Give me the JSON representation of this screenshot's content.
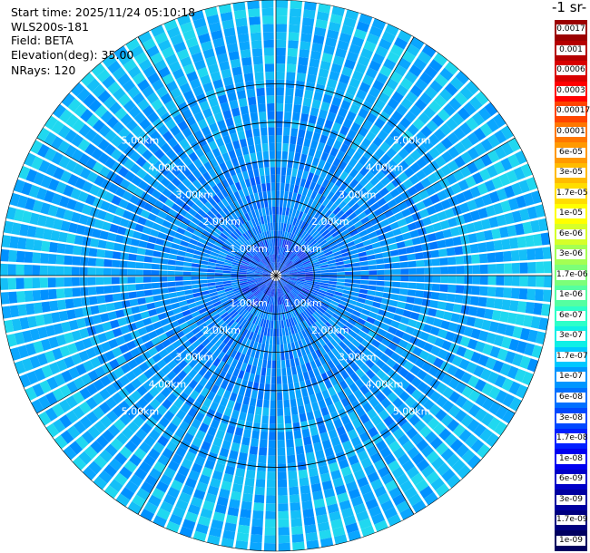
{
  "info": {
    "start_time": "Start time: 2025/11/24 05:10:18",
    "instrument": "WLS200s-181",
    "field": "Field: BETA",
    "elevation": "Elevation(deg): 35.00",
    "nrays": "NRays: 120"
  },
  "colorbar": {
    "title": "-1 sr-",
    "labels": [
      "0.0017",
      "0.001",
      "0.0006",
      "0.0003",
      "0.00017",
      "0.0001",
      "6e-05",
      "3e-05",
      "1.7e-05",
      "1e-05",
      "6e-06",
      "3e-06",
      "1.7e-06",
      "1e-06",
      "6e-07",
      "3e-07",
      "1.7e-07",
      "1e-07",
      "6e-08",
      "3e-08",
      "1.7e-08",
      "1e-08",
      "6e-09",
      "3e-09",
      "1.7e-09",
      "1e-09"
    ],
    "colors": [
      "#9b0000",
      "#b50000",
      "#d80000",
      "#ff0000",
      "#ff4400",
      "#ff7700",
      "#ff9900",
      "#ffbb00",
      "#ffdd00",
      "#ffff00",
      "#d6ff29",
      "#a4ff53",
      "#7cff79",
      "#55ffa1",
      "#2dffc9",
      "#0fefe6",
      "#00c8ff",
      "#0096ff",
      "#0070ff",
      "#0048ff",
      "#0020ff",
      "#0000f0",
      "#0000c8",
      "#0000a0",
      "#000080",
      "#000060"
    ],
    "dark_text_above_index": 17
  },
  "chart_data": {
    "type": "heatmap",
    "projection": "polar (PPI scan)",
    "field": "BETA",
    "elevation_deg": 35.0,
    "n_rays": 120,
    "range_rings": [
      {
        "label": "1.00km",
        "value_km": 1.0
      },
      {
        "label": "2.00km",
        "value_km": 2.0
      },
      {
        "label": "3.00km",
        "value_km": 3.0
      },
      {
        "label": "4.00km",
        "value_km": 4.0
      },
      {
        "label": "5.00km",
        "value_km": 5.0
      }
    ],
    "max_range_km": 5.9,
    "spoke_angles_deg": [
      0,
      30,
      60,
      90,
      120,
      150,
      180,
      210,
      240,
      270,
      300,
      330
    ],
    "dominant_value_range": [
      "1e-08",
      "3e-07"
    ]
  }
}
